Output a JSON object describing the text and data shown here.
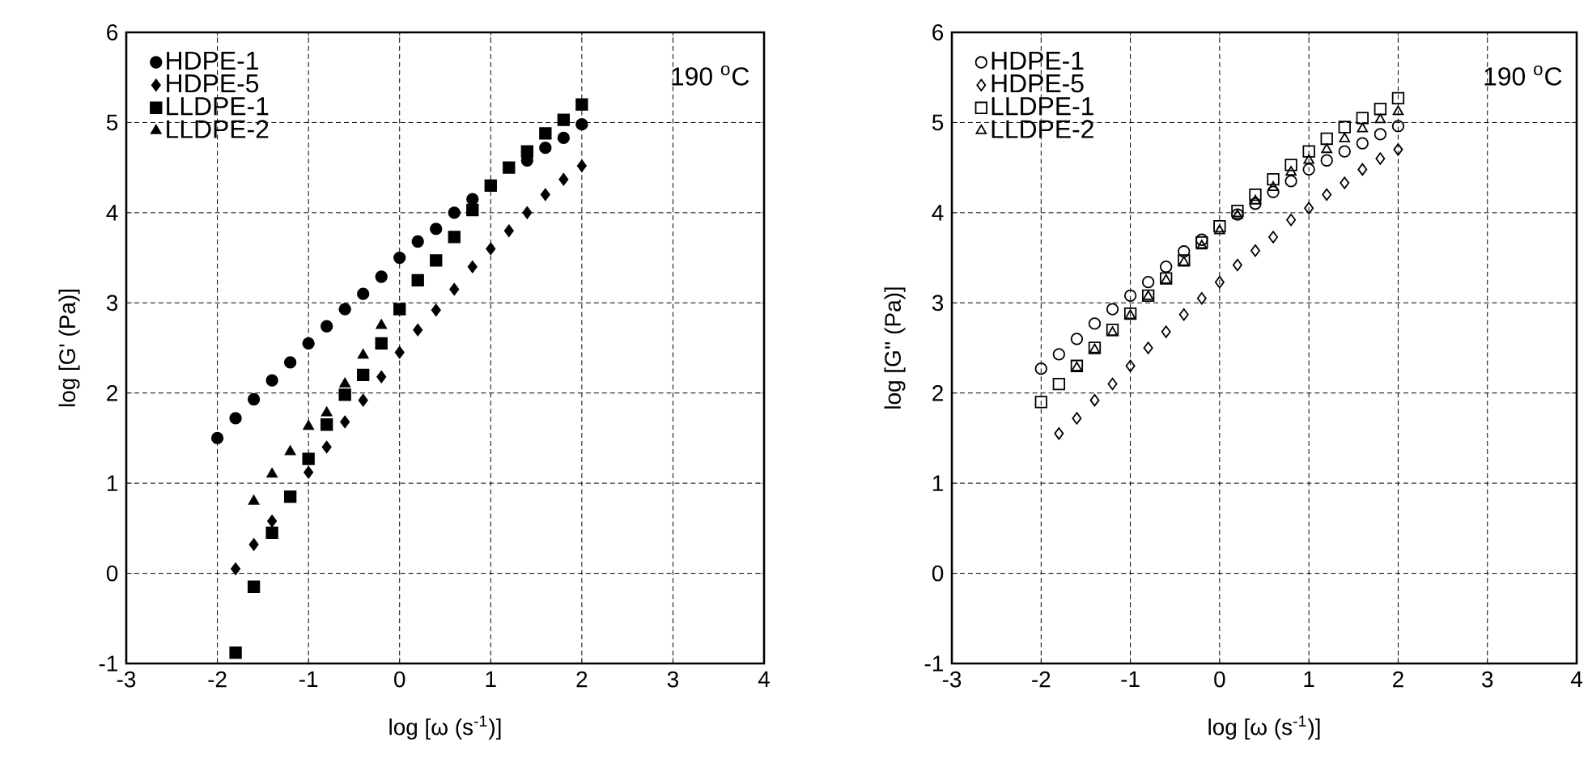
{
  "chart_data": [
    {
      "type": "scatter",
      "xlabel": "log [ω (s$^{-1}$)]",
      "ylabel": "log [G' (Pa)]",
      "annotations": [
        "190 $^{o}$C"
      ],
      "xlim": [
        -3,
        4
      ],
      "ylim": [
        -1,
        6
      ],
      "xticks": [
        -3,
        -2,
        -1,
        0,
        1,
        2,
        3,
        4
      ],
      "yticks": [
        -1,
        0,
        1,
        2,
        3,
        4,
        5,
        6
      ],
      "grid": true,
      "legend": "top left",
      "x": [
        -2,
        -1.8,
        -1.6,
        -1.4,
        -1.2,
        -1.0,
        -0.8,
        -0.6,
        -0.4,
        -0.2,
        0,
        0.2,
        0.4,
        0.6,
        0.8,
        1.0,
        1.2,
        1.4,
        1.6,
        1.8,
        2.0
      ],
      "series": [
        {
          "name": "HDPE-1",
          "color": "#000000",
          "marker": "circle",
          "values": [
            1.5,
            1.72,
            1.93,
            2.14,
            2.34,
            2.55,
            2.74,
            2.93,
            3.1,
            3.29,
            3.5,
            3.68,
            3.82,
            4.0,
            4.15,
            null,
            null,
            4.58,
            4.72,
            4.83,
            4.98
          ]
        },
        {
          "name": "HDPE-5",
          "color": "#000000",
          "marker": "diamond",
          "values": [
            null,
            0.05,
            0.32,
            0.58,
            null,
            1.12,
            1.4,
            1.68,
            1.92,
            2.18,
            2.45,
            2.7,
            2.92,
            3.15,
            3.4,
            3.6,
            3.8,
            4.0,
            4.2,
            4.37,
            4.52
          ]
        },
        {
          "name": "LLDPE-1",
          "color": "#000000",
          "marker": "square",
          "values": [
            null,
            -0.88,
            -0.15,
            0.45,
            0.85,
            1.27,
            1.65,
            1.98,
            2.2,
            2.55,
            2.93,
            3.25,
            3.47,
            3.73,
            4.03,
            4.3,
            4.5,
            4.68,
            4.88,
            5.03,
            5.2
          ]
        },
        {
          "name": "LLDPE-2",
          "color": "#000000",
          "marker": "triangle",
          "values": [
            null,
            null,
            0.8,
            1.1,
            1.35,
            1.63,
            1.78,
            2.1,
            2.42,
            2.75,
            null,
            null,
            null,
            null,
            null,
            null,
            null,
            null,
            null,
            null,
            null
          ]
        }
      ]
    },
    {
      "type": "scatter",
      "xlabel": "log [ω (s$^{-1}$)]",
      "ylabel": "log [G'' (Pa)]",
      "annotations": [
        "190 $^{o}$C"
      ],
      "xlim": [
        -3,
        4
      ],
      "ylim": [
        -1,
        6
      ],
      "xticks": [
        -3,
        -2,
        -1,
        0,
        1,
        2,
        3,
        4
      ],
      "yticks": [
        -1,
        0,
        1,
        2,
        3,
        4,
        5,
        6
      ],
      "grid": true,
      "legend": "top left",
      "x": [
        -2,
        -1.8,
        -1.6,
        -1.4,
        -1.2,
        -1.0,
        -0.8,
        -0.6,
        -0.4,
        -0.2,
        0,
        0.2,
        0.4,
        0.6,
        0.8,
        1.0,
        1.2,
        1.4,
        1.6,
        1.8,
        2.0
      ],
      "series": [
        {
          "name": "HDPE-1",
          "color": "#000000",
          "marker": "circle",
          "values": [
            2.27,
            2.43,
            2.6,
            2.77,
            2.93,
            3.08,
            3.23,
            3.4,
            3.57,
            3.7,
            null,
            3.98,
            4.1,
            4.23,
            4.35,
            4.48,
            4.58,
            4.68,
            4.77,
            4.87,
            4.96
          ]
        },
        {
          "name": "HDPE-5",
          "color": "#000000",
          "marker": "diamond",
          "values": [
            null,
            1.55,
            1.72,
            1.92,
            2.1,
            2.3,
            2.5,
            2.68,
            2.87,
            3.05,
            3.23,
            3.42,
            3.58,
            3.73,
            3.92,
            4.05,
            4.2,
            4.33,
            4.48,
            4.6,
            4.7
          ]
        },
        {
          "name": "LLDPE-1",
          "color": "#000000",
          "marker": "square",
          "values": [
            1.9,
            2.1,
            2.3,
            2.5,
            2.7,
            2.88,
            3.08,
            3.27,
            3.47,
            3.67,
            3.85,
            4.02,
            4.2,
            4.37,
            4.53,
            4.68,
            4.82,
            4.95,
            5.05,
            5.15,
            5.27
          ]
        },
        {
          "name": "LLDPE-2",
          "color": "#000000",
          "marker": "triangle",
          "values": [
            null,
            null,
            2.28,
            2.48,
            2.67,
            2.86,
            3.07,
            3.25,
            3.45,
            3.63,
            3.8,
            3.97,
            4.13,
            4.28,
            4.45,
            4.58,
            4.7,
            4.82,
            4.93,
            5.03,
            5.12
          ]
        }
      ]
    }
  ]
}
